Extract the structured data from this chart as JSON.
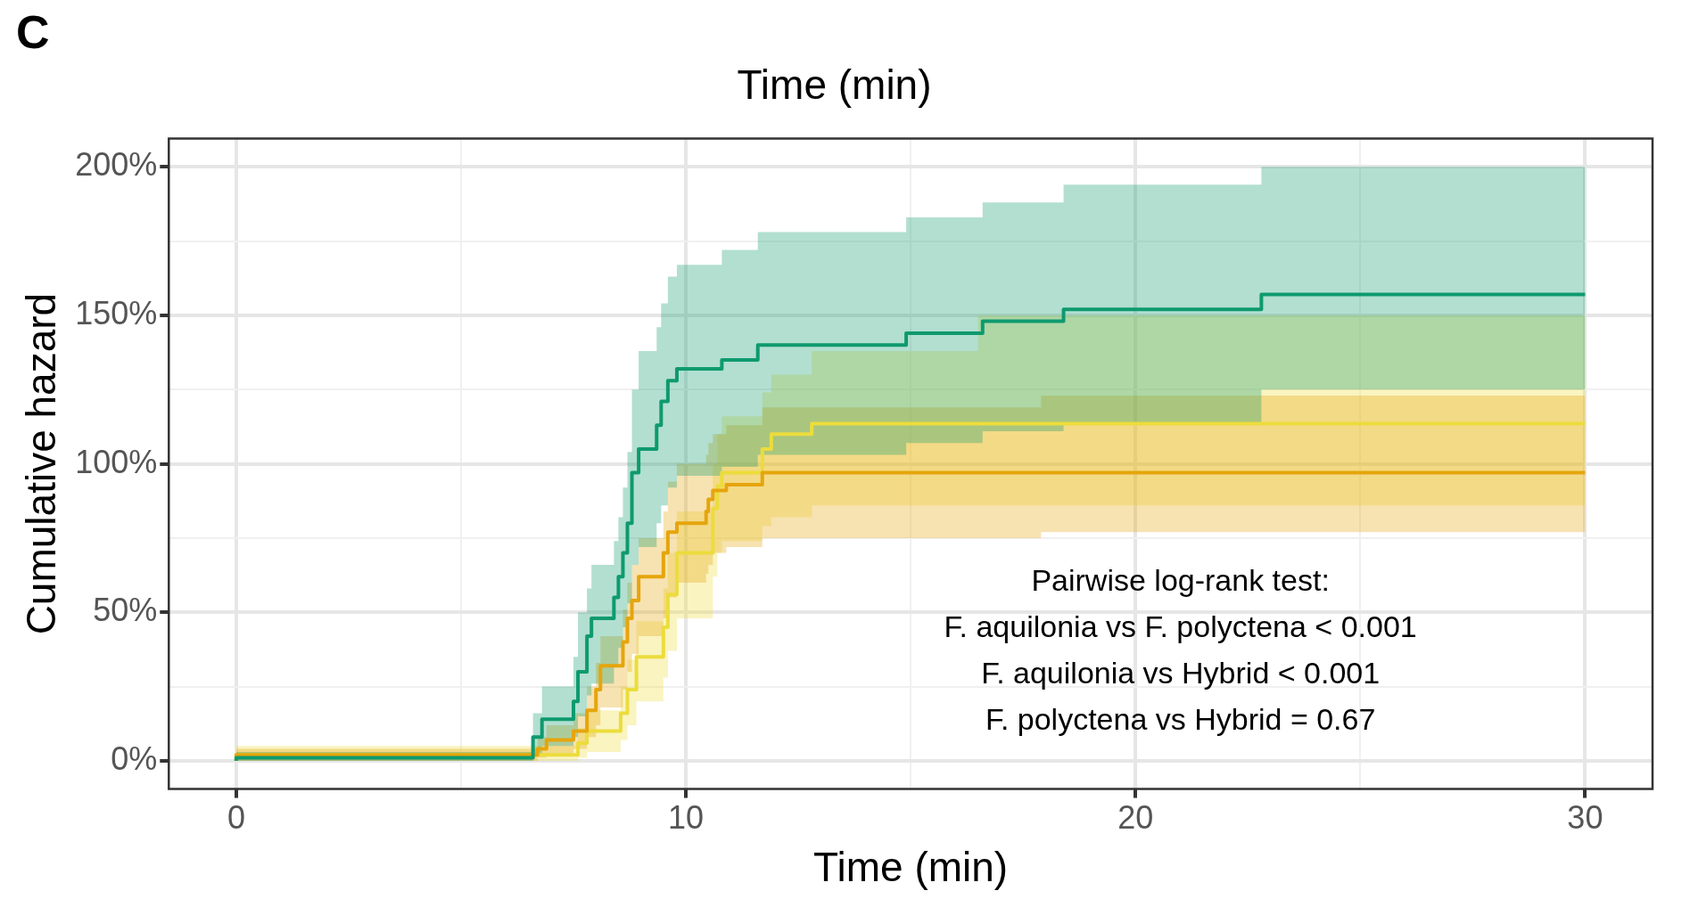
{
  "chart_data": {
    "type": "step",
    "title": "C",
    "subtitle": "Time (min)",
    "xlabel": "Time (min)",
    "ylabel": "Cumulative hazard",
    "xlim": [
      -1.5,
      31.5
    ],
    "ylim": [
      -9.5,
      209.5
    ],
    "xticks": [
      0,
      {
        "value": 5,
        "label": null
      },
      10,
      {
        "value": 15,
        "label": null
      },
      20,
      {
        "value": 25,
        "label": null
      },
      30
    ],
    "yticks": [
      {
        "value": 0,
        "label": "0%"
      },
      {
        "value": 25,
        "label": null
      },
      {
        "value": 50,
        "label": "50%"
      },
      {
        "value": 75,
        "label": null
      },
      {
        "value": 100,
        "label": "100%"
      },
      {
        "value": 125,
        "label": null
      },
      {
        "value": 150,
        "label": "150%"
      },
      {
        "value": 175,
        "label": null
      },
      {
        "value": 200,
        "label": "200%"
      }
    ],
    "grid": true,
    "legend": false,
    "series": [
      {
        "color": "#0e9a6e",
        "x": [
          0,
          6.6,
          6.8,
          7.5,
          7.6,
          7.8,
          7.9,
          8.4,
          8.5,
          8.6,
          8.7,
          8.8,
          8.95,
          9.35,
          9.45,
          9.6,
          9.8,
          10.8,
          11.6,
          14.9,
          16.6,
          18.4,
          22.8,
          28.8,
          30
        ],
        "values": [
          0,
          1,
          8,
          14,
          20,
          30,
          42,
          48,
          55,
          62,
          70,
          80,
          97,
          105,
          113,
          121,
          128,
          132,
          135,
          140,
          144,
          148,
          152,
          157,
          157
        ],
        "lower": [
          0,
          0,
          2,
          5,
          8,
          15,
          22,
          26,
          32,
          38,
          45,
          53,
          66,
          72,
          80,
          86,
          92,
          96,
          99,
          103,
          107,
          111,
          114,
          125,
          125
        ],
        "upper": [
          0,
          3,
          16,
          25,
          35,
          50,
          58,
          66,
          74,
          82,
          92,
          104,
          125,
          138,
          146,
          154,
          163,
          167,
          172,
          178,
          183,
          188,
          194,
          200,
          200
        ]
      },
      {
        "color": "#e5a50c",
        "x": [
          0,
          6.7,
          6.9,
          7.5,
          7.8,
          8.0,
          8.1,
          8.6,
          8.7,
          8.8,
          8.95,
          9.5,
          9.6,
          9.8,
          10.45,
          10.5,
          10.6,
          10.9,
          11.7,
          17.9,
          30
        ],
        "values": [
          0,
          2,
          4,
          7,
          10,
          17,
          24,
          32,
          40,
          48,
          54,
          62,
          70,
          77,
          80,
          84,
          88,
          91,
          93,
          97,
          97
        ],
        "lower": [
          0,
          0,
          1,
          2,
          4,
          8,
          12,
          18,
          24,
          30,
          36,
          42,
          48,
          55,
          60,
          63,
          66,
          70,
          72,
          75,
          77
        ],
        "upper": [
          0,
          4,
          8,
          12,
          16,
          25,
          33,
          42,
          51,
          60,
          66,
          75,
          84,
          94,
          100,
          103,
          107,
          110,
          113,
          119,
          123
        ]
      },
      {
        "color": "#ecdc3c",
        "x": [
          0,
          7.6,
          7.8,
          8.55,
          8.7,
          8.9,
          9.5,
          9.6,
          9.8,
          10.6,
          10.7,
          10.8,
          11.7,
          11.9,
          12.8,
          16.5,
          30
        ],
        "values": [
          0,
          2,
          6,
          10,
          16,
          24,
          35,
          45,
          56,
          70,
          85,
          92.5,
          97,
          105,
          110,
          113.5,
          113.5
        ],
        "lower": [
          0,
          0,
          1,
          3,
          7,
          12,
          20,
          28,
          37,
          48,
          62,
          70,
          74,
          79,
          82,
          86,
          86
        ],
        "upper": [
          0,
          5,
          11,
          17,
          25,
          34,
          47,
          58,
          70,
          84,
          100,
          110,
          116,
          124,
          130,
          138,
          150
        ]
      }
    ],
    "annotations": [
      "Pairwise log-rank test:",
      "F. aquilonia vs F. polyctena < 0.001",
      "F. aquilonia vs Hybrid < 0.001",
      "F. polyctena vs Hybrid = 0.67"
    ]
  }
}
